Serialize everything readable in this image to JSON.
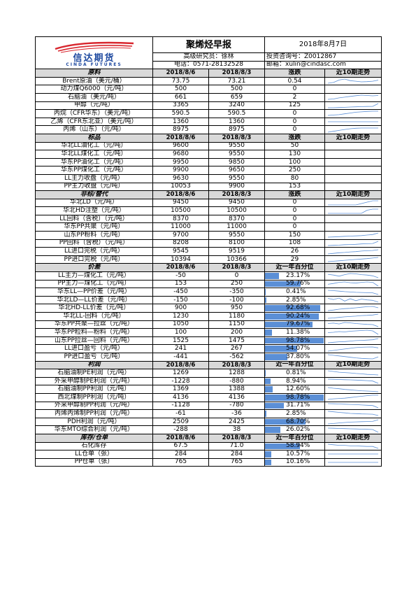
{
  "header": {
    "title": "聚烯烃早报",
    "date": "2018年8月7日",
    "analyst": "高级研究员：徐林",
    "license": "投资咨询号：Z0012867",
    "phone": "电话：0571-28132528",
    "email": "邮箱：xulin@cindasc.com",
    "logo_cn": "信达期货",
    "logo_en": "CINDA FUTURES"
  },
  "colors": {
    "header_bg": "#d9d9d9",
    "pct_bar": "#5b8fd6",
    "logo_blue": "#1f4aa0",
    "logo_red": "#d8262e"
  },
  "sections": [
    {
      "name": "原料",
      "col1": "2018/8/6",
      "col2": "2018/8/3",
      "col3": "涨跌",
      "col4": "近10期走势",
      "pct": false,
      "rows": [
        {
          "label": "Brent原油（美元/桶）",
          "v1": "73.75",
          "v2": "73.21",
          "v3": "0.54",
          "trend": [
            72.2,
            72.6,
            73.8,
            74.3,
            73.5,
            73.2,
            72.9,
            73.0,
            73.2,
            73.75
          ]
        },
        {
          "label": "动力煤Q6000（元/吨）",
          "v1": "500",
          "v2": "500",
          "v3": "0",
          "trend": []
        },
        {
          "label": "石脑油（美元/吨）",
          "v1": "661",
          "v2": "659",
          "v3": "2",
          "trend": [
            640,
            642,
            648,
            652,
            656,
            660,
            663,
            661,
            659,
            661
          ]
        },
        {
          "label": "甲醇（元/吨）",
          "v1": "3365",
          "v2": "3240",
          "v3": "125",
          "trend": [
            3180,
            3180,
            3190,
            3200,
            3210,
            3220,
            3230,
            3235,
            3240,
            3365
          ]
        },
        {
          "label": "丙烷（CFR华东）（美元/吨）",
          "v1": "590.5",
          "v2": "590.5",
          "v3": "0",
          "trend": [
            580,
            581,
            582,
            584,
            586,
            588,
            589,
            590,
            590.5,
            590.5
          ]
        },
        {
          "label": "乙烯（CFR东北亚）（美元/吨）",
          "v1": "1360",
          "v2": "1360",
          "v3": "0",
          "trend": [
            1360,
            1360,
            1360,
            1360,
            1360,
            1360,
            1360,
            1360,
            1360,
            1360
          ]
        },
        {
          "label": "丙烯（山东）（元/吨）",
          "v1": "8975",
          "v2": "8975",
          "v3": "0",
          "trend": [
            8700,
            8760,
            8820,
            8880,
            8930,
            8960,
            8975,
            8975,
            8975,
            8975
          ]
        }
      ]
    },
    {
      "name": "标品",
      "col1": "2018/8/6",
      "col2": "2018/8/3",
      "col3": "涨跌",
      "col4": "近10期走势",
      "pct": false,
      "rows": [
        {
          "label": "华北LL油化工（元/吨）",
          "v1": "9600",
          "v2": "9550",
          "v3": "50",
          "trend": []
        },
        {
          "label": "华北LL煤化工（元/吨）",
          "v1": "9680",
          "v2": "9550",
          "v3": "130",
          "trend": []
        },
        {
          "label": "华东PP油化工（元/吨）",
          "v1": "9950",
          "v2": "9850",
          "v3": "100",
          "trend": []
        },
        {
          "label": "华东PP煤化工（元/吨）",
          "v1": "9900",
          "v2": "9650",
          "v3": "250",
          "trend": []
        },
        {
          "label": "LL主力收盘（元/吨）",
          "v1": "9630",
          "v2": "9550",
          "v3": "80",
          "trend": []
        },
        {
          "label": "PP主力收盘（元/吨）",
          "v1": "10053",
          "v2": "9900",
          "v3": "153",
          "trend": []
        }
      ]
    },
    {
      "name": "非标/替代",
      "col1": "2018/8/6",
      "col2": "2018/8/3",
      "col3": "涨跌",
      "col4": "近10期走势",
      "pct": false,
      "rows": [
        {
          "label": "华北LD（元/吨）",
          "v1": "9450",
          "v2": "9450",
          "v3": "0",
          "trend": [
            9300,
            9300,
            9300,
            9300,
            9300,
            9300,
            9350,
            9400,
            9450,
            9450
          ]
        },
        {
          "label": "华北HD注塑（元/吨）",
          "v1": "10500",
          "v2": "10500",
          "v3": "0",
          "trend": [
            10300,
            10300,
            10300,
            10300,
            10300,
            10300,
            10300,
            10450,
            10500,
            10500
          ]
        },
        {
          "label": "LL回料（含税）（元/吨）",
          "v1": "8370",
          "v2": "8370",
          "v3": "0",
          "trend": []
        },
        {
          "label": "华东PP共聚（元/吨）",
          "v1": "11000",
          "v2": "11000",
          "v3": "0",
          "trend": []
        },
        {
          "label": "山东PP粉料（元/吨）",
          "v1": "9700",
          "v2": "9550",
          "v3": "150",
          "trend": [
            9300,
            9320,
            9350,
            9380,
            9400,
            9420,
            9450,
            9500,
            9550,
            9700
          ]
        },
        {
          "label": "PP回料（含税）（元/吨）",
          "v1": "8208",
          "v2": "8100",
          "v3": "108",
          "trend": [
            8000,
            8010,
            8020,
            8040,
            8050,
            8060,
            8080,
            8090,
            8100,
            8208
          ]
        },
        {
          "label": "LL进口完税（元/吨）",
          "v1": "9545",
          "v2": "9519",
          "v3": "26",
          "trend": [
            9400,
            9420,
            9440,
            9450,
            9470,
            9480,
            9500,
            9510,
            9519,
            9545
          ]
        },
        {
          "label": "PP进口完税（元/吨）",
          "v1": "10394",
          "v2": "10366",
          "v3": "29",
          "trend": [
            10200,
            10220,
            10240,
            10260,
            10280,
            10300,
            10320,
            10340,
            10366,
            10394
          ]
        }
      ]
    },
    {
      "name": "价差",
      "col1": "2018/8/6",
      "col2": "2018/8/3",
      "col3": "近一年百分位",
      "col4": "近10期走势",
      "pct": true,
      "rows": [
        {
          "label": "LL主力—煤化工（元/吨）",
          "v1": "-50",
          "v2": "0",
          "v3": "23.17%",
          "pct": 23.17,
          "trend": [
            40,
            20,
            -10,
            30,
            60,
            50,
            30,
            20,
            0,
            -50
          ]
        },
        {
          "label": "PP主力—煤化工（元/吨）",
          "v1": "153",
          "v2": "250",
          "v3": "59.76%",
          "pct": 59.76,
          "trend": [
            200,
            220,
            250,
            260,
            240,
            230,
            250,
            260,
            250,
            153
          ]
        },
        {
          "label": "华东LL—PP价差（元/吨）",
          "v1": "-450",
          "v2": "-350",
          "v3": "0.41%",
          "pct": 0.41,
          "trend": [
            -200,
            -220,
            -250,
            -280,
            -300,
            -320,
            -330,
            -340,
            -350,
            -450
          ]
        },
        {
          "label": "华北LD—LL价差（元/吨）",
          "v1": "-150",
          "v2": "-100",
          "v3": "2.85%",
          "pct": 2.85,
          "trend": [
            -50,
            -80,
            -40,
            -120,
            -60,
            -110,
            -70,
            -90,
            -100,
            -150
          ]
        },
        {
          "label": "华北HD-LL价差（元/吨）",
          "v1": "900",
          "v2": "950",
          "v3": "92.68%",
          "pct": 92.68,
          "trend": [
            800,
            820,
            850,
            870,
            880,
            900,
            920,
            940,
            950,
            900
          ]
        },
        {
          "label": "华北LL-回料（元/吨）",
          "v1": "1230",
          "v2": "1180",
          "v3": "90.24%",
          "pct": 90.24,
          "trend": [
            1000,
            1020,
            1050,
            1080,
            1100,
            1120,
            1150,
            1160,
            1180,
            1230
          ]
        },
        {
          "label": "华东PP共聚—拉丝（元/吨）",
          "v1": "1050",
          "v2": "1150",
          "v3": "79.67%",
          "pct": 79.67,
          "trend": [
            1200,
            1220,
            1180,
            1250,
            1230,
            1200,
            1180,
            1160,
            1150,
            1050
          ]
        },
        {
          "label": "华东PP粒料—粉料（元/吨）",
          "v1": "100",
          "v2": "200",
          "v3": "11.38%",
          "pct": 11.38,
          "trend": [
            150,
            160,
            180,
            170,
            190,
            200,
            210,
            220,
            200,
            100
          ]
        },
        {
          "label": "山东PP拉丝—回料（元/吨）",
          "v1": "1525",
          "v2": "1475",
          "v3": "98.78%",
          "pct": 98.78,
          "trend": [
            1350,
            1370,
            1390,
            1400,
            1420,
            1440,
            1450,
            1460,
            1475,
            1525
          ]
        },
        {
          "label": "LL进口盈亏（元/吨）",
          "v1": "241",
          "v2": "267",
          "v3": "54.07%",
          "pct": 54.07,
          "trend": [
            150,
            170,
            190,
            210,
            230,
            250,
            260,
            265,
            267,
            241
          ]
        },
        {
          "label": "PP进口盈亏（元/吨）",
          "v1": "-441",
          "v2": "-562",
          "v3": "37.80%",
          "pct": 37.8,
          "trend": [
            -300,
            -340,
            -380,
            -420,
            -460,
            -500,
            -530,
            -550,
            -562,
            -441
          ]
        }
      ]
    },
    {
      "name": "利润",
      "col1": "2018/8/6",
      "col2": "2018/8/3",
      "col3": "近一年百分位",
      "col4": "近10期走势",
      "pct": true,
      "rows": [
        {
          "label": "石脑油制PE利润（元/吨）",
          "v1": "1269",
          "v2": "1288",
          "v3": "0.81%",
          "pct": 0.81,
          "trend": [
            1500,
            1460,
            1420,
            1400,
            1380,
            1350,
            1330,
            1300,
            1288,
            1269
          ]
        },
        {
          "label": "外采甲醇制PE利润（元/吨）",
          "v1": "-1228",
          "v2": "-880",
          "v3": "8.94%",
          "pct": 8.94,
          "trend": [
            -600,
            -620,
            -650,
            -680,
            -700,
            -740,
            -780,
            -820,
            -880,
            -1228
          ]
        },
        {
          "label": "石脑油制PP利润（元/吨）",
          "v1": "1369",
          "v2": "1388",
          "v3": "12.60%",
          "pct": 12.6,
          "trend": [
            1550,
            1520,
            1500,
            1470,
            1450,
            1430,
            1410,
            1400,
            1388,
            1369
          ]
        },
        {
          "label": "西北煤制PP利润（元/吨）",
          "v1": "4136",
          "v2": "4136",
          "v3": "98.78%",
          "pct": 98.78,
          "trend": [
            3800,
            3850,
            3880,
            3900,
            3950,
            4000,
            4050,
            4100,
            4136,
            4136
          ]
        },
        {
          "label": "外采甲醇制PP利润（元/吨）",
          "v1": "-1128",
          "v2": "-780",
          "v3": "31.71%",
          "pct": 31.71,
          "trend": [
            -500,
            -520,
            -550,
            -580,
            -610,
            -650,
            -700,
            -740,
            -780,
            -1128
          ]
        },
        {
          "label": "丙烯丙烯制PP利润（元/吨）",
          "v1": "-61",
          "v2": "-36",
          "v3": "2.85%",
          "pct": 2.85,
          "trend": [
            20,
            10,
            0,
            -10,
            -20,
            -25,
            -30,
            -33,
            -36,
            -61
          ]
        },
        {
          "label": "PDH利润（元/吨）",
          "v1": "2509",
          "v2": "2425",
          "v3": "68.70%",
          "pct": 68.7,
          "trend": [
            2300,
            2320,
            2350,
            2370,
            2390,
            2400,
            2410,
            2420,
            2425,
            2509
          ]
        },
        {
          "label": "华东MTO综合利润（元/吨）",
          "v1": "-288",
          "v2": "38",
          "v3": "26.02%",
          "pct": 26.02,
          "trend": [
            200,
            180,
            160,
            140,
            120,
            100,
            80,
            60,
            38,
            -288
          ]
        }
      ]
    },
    {
      "name": "库存/仓单",
      "col1": "2018/8/6",
      "col2": "2018/8/3",
      "col3": "近一年百分位",
      "col4": "近10期走势",
      "pct": true,
      "rows": [
        {
          "label": "石化库存",
          "v1": "67.5",
          "v2": "71.0",
          "v3": "58.94%",
          "pct": 58.94,
          "trend": [
            75,
            74,
            73,
            73,
            72,
            72,
            71.5,
            71,
            71,
            67.5
          ]
        },
        {
          "label": "LL仓单（张）",
          "v1": "284",
          "v2": "284",
          "v3": "10.57%",
          "pct": 10.57,
          "trend": [
            284,
            284,
            284,
            284,
            284,
            284,
            284,
            284,
            284,
            284
          ]
        },
        {
          "label": "PP仓单（张）",
          "v1": "765",
          "v2": "765",
          "v3": "10.16%",
          "pct": 10.16,
          "trend": [
            765,
            765,
            765,
            765,
            765,
            765,
            765,
            765,
            765,
            765
          ]
        }
      ]
    }
  ]
}
